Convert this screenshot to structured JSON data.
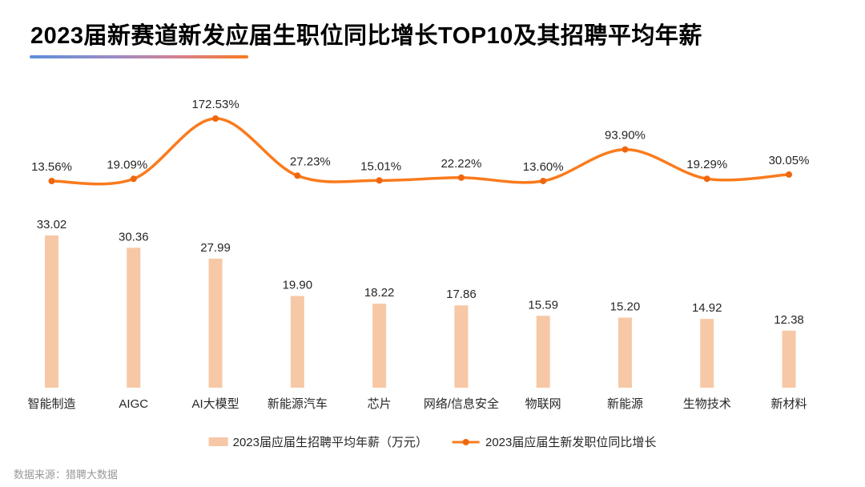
{
  "page": {
    "title": "2023届新赛道新发应届生职位同比增长TOP10及其招聘平均年薪",
    "source_note": "数据来源：猎聘大数据"
  },
  "colors": {
    "bar_fill": "#F7C8A5",
    "line_stroke": "#F97B1C",
    "point_marker": "#F0660E",
    "title_text": "#000000",
    "value_label_text": "#262626",
    "category_label_text": "#262626",
    "legend_text": "#262626",
    "source_text": "#999999",
    "underline_gradient_start": "#5C8FD9",
    "underline_gradient_end": "#F87B20"
  },
  "legend": {
    "bar_label": "2023届应届生招聘平均年薪（万元）",
    "line_label": "2023届应届生新发职位同比增长"
  },
  "chart_data": {
    "type": "bar+line",
    "title": "2023届新赛道新发应届生职位同比增长TOP10及其招聘平均年薪",
    "categories": [
      "智能制造",
      "AIGC",
      "AI大模型",
      "新能源汽车",
      "芯片",
      "网络/信息安全",
      "物联网",
      "新能源",
      "生物技术",
      "新材料"
    ],
    "series": [
      {
        "name": "2023届应届生招聘平均年薪（万元）",
        "type": "bar",
        "unit": "万元",
        "values": [
          33.02,
          30.36,
          27.99,
          19.9,
          18.22,
          17.86,
          15.59,
          15.2,
          14.92,
          12.38
        ],
        "labels": [
          "33.02",
          "30.36",
          "27.99",
          "19.90",
          "18.22",
          "17.86",
          "15.59",
          "15.20",
          "14.92",
          "12.38"
        ]
      },
      {
        "name": "2023届应届生新发职位同比增长",
        "type": "line",
        "unit": "%",
        "values": [
          13.56,
          19.09,
          172.53,
          27.23,
          15.01,
          22.22,
          13.6,
          93.9,
          19.29,
          30.05
        ],
        "labels": [
          "13.56%",
          "19.09%",
          "172.53%",
          "27.23%",
          "15.01%",
          "22.22%",
          "13.60%",
          "93.90%",
          "19.29%",
          "30.05%"
        ]
      }
    ],
    "xlabel": "",
    "ylabel": "",
    "grid": false,
    "axes_visible": false,
    "legend_position": "bottom"
  }
}
